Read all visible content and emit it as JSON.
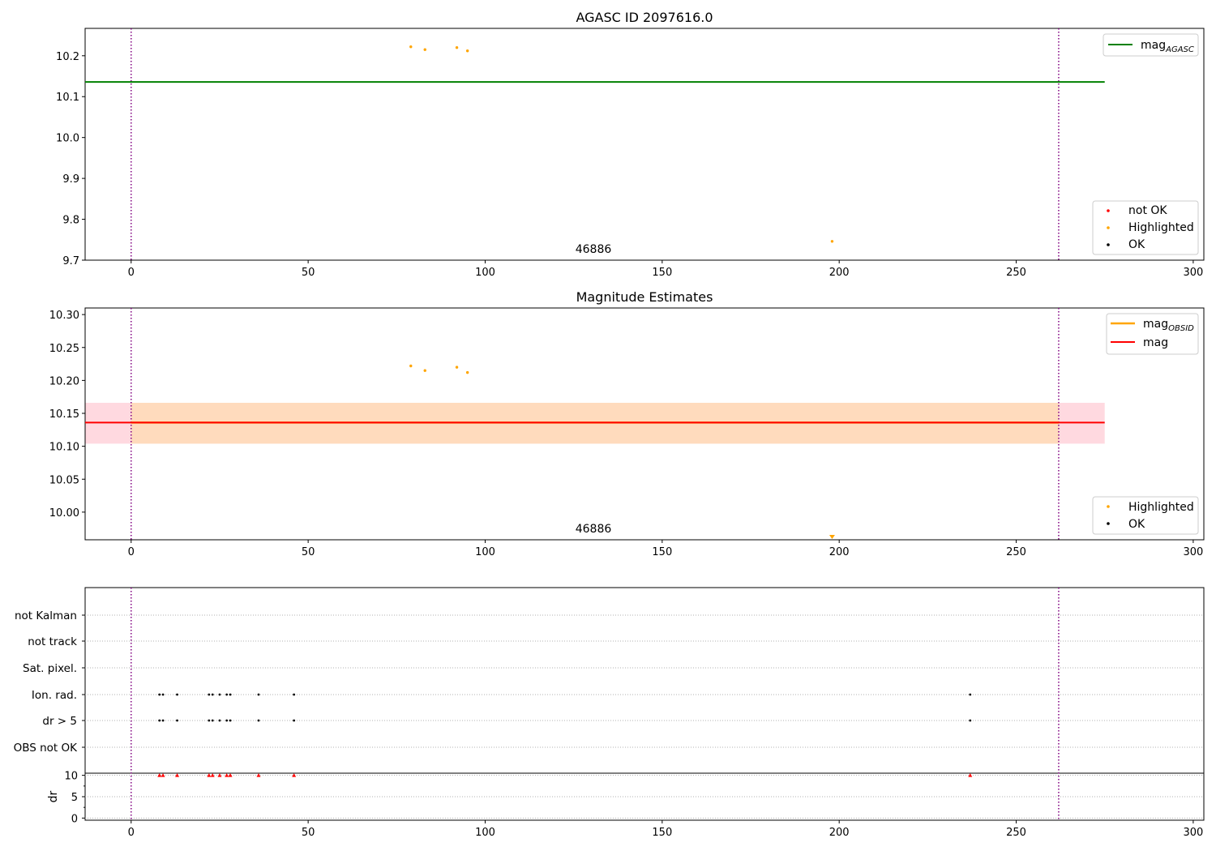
{
  "chart_data": [
    {
      "type": "scatter",
      "title": "AGASC ID 2097616.0",
      "xlabel": "",
      "ylabel": "",
      "xlim": [
        -13,
        303
      ],
      "ylim": [
        9.7,
        10.267
      ],
      "xticks": [
        0,
        50,
        100,
        150,
        200,
        250,
        300
      ],
      "yticks": [
        9.7,
        9.8,
        9.9,
        10.0,
        10.1,
        10.2
      ],
      "annotation": "46886",
      "annotation_x": 130,
      "reference_line": {
        "name": "mag_AGASC",
        "value": 10.136,
        "x_range": [
          -13,
          275
        ],
        "color": "#008000"
      },
      "vertical_lines": [
        0,
        262
      ],
      "legend_lines": [
        {
          "label_base": "mag",
          "label_sub": "AGASC",
          "color": "#008000"
        }
      ],
      "legend_markers": [
        {
          "label": "not OK",
          "color": "#ff0000"
        },
        {
          "label": "Highlighted",
          "color": "#ffa500"
        },
        {
          "label": "OK",
          "color": "#000000"
        }
      ],
      "highlighted": [
        [
          79,
          10.222
        ],
        [
          83,
          10.215
        ],
        [
          92,
          10.22
        ],
        [
          95,
          10.212
        ],
        [
          198,
          9.746
        ]
      ]
    },
    {
      "type": "scatter",
      "title": "Magnitude Estimates",
      "xlabel": "",
      "ylabel": "",
      "xlim": [
        -13,
        303
      ],
      "ylim": [
        9.958,
        10.31
      ],
      "xticks": [
        0,
        50,
        100,
        150,
        200,
        250,
        300
      ],
      "yticks": [
        10.0,
        10.05,
        10.1,
        10.15,
        10.2,
        10.25,
        10.3
      ],
      "annotation": "46886",
      "annotation_x": 130,
      "band_outer": {
        "low": 10.104,
        "high": 10.166,
        "color": "#ffc0cb"
      },
      "band_inner": {
        "low": 10.104,
        "high": 10.166,
        "color": "#ffdab9"
      },
      "mean_line": {
        "value": 10.136,
        "color": "#ff0000",
        "x_range": [
          -13,
          275
        ]
      },
      "obsid_line": {
        "value": 10.136,
        "color": "#ffa500",
        "x_range": [
          0,
          262
        ]
      },
      "vertical_lines": [
        0,
        262
      ],
      "legend_lines": [
        {
          "label_base": "mag",
          "label_sub": "OBSID",
          "color": "#ffa500"
        },
        {
          "label_base": "mag",
          "label_sub": "",
          "color": "#ff0000"
        }
      ],
      "legend_markers": [
        {
          "label": "Highlighted",
          "color": "#ffa500"
        },
        {
          "label": "OK",
          "color": "#000000"
        }
      ],
      "highlighted": [
        [
          79,
          10.222
        ],
        [
          83,
          10.215
        ],
        [
          92,
          10.22
        ],
        [
          95,
          10.212
        ]
      ],
      "offscale_marker": {
        "x": 198,
        "color": "#ffa500"
      }
    },
    {
      "type": "scatter",
      "title": "",
      "xlabel": "",
      "ylabel": "dr",
      "xlim": [
        -13,
        303
      ],
      "flag_rows": [
        "not Kalman",
        "not track",
        "Sat. pixel.",
        "Ion. rad.",
        "dr > 5",
        "OBS not OK"
      ],
      "flags": {
        "Ion. rad.": [
          8,
          9,
          13,
          22,
          23,
          25,
          27,
          28,
          36,
          46,
          237
        ],
        "dr > 5": [
          8,
          9,
          13,
          22,
          23,
          25,
          27,
          28,
          36,
          46,
          237
        ]
      },
      "dr_yticks": [
        0,
        5,
        10
      ],
      "dr_ylim": [
        -0.5,
        10.5
      ],
      "dr_clipped_markers": [
        8,
        9,
        13,
        22,
        23,
        25,
        27,
        28,
        36,
        46,
        237
      ],
      "vertical_lines": [
        0,
        262
      ],
      "xticks": [
        0,
        50,
        100,
        150,
        200,
        250,
        300
      ]
    }
  ]
}
